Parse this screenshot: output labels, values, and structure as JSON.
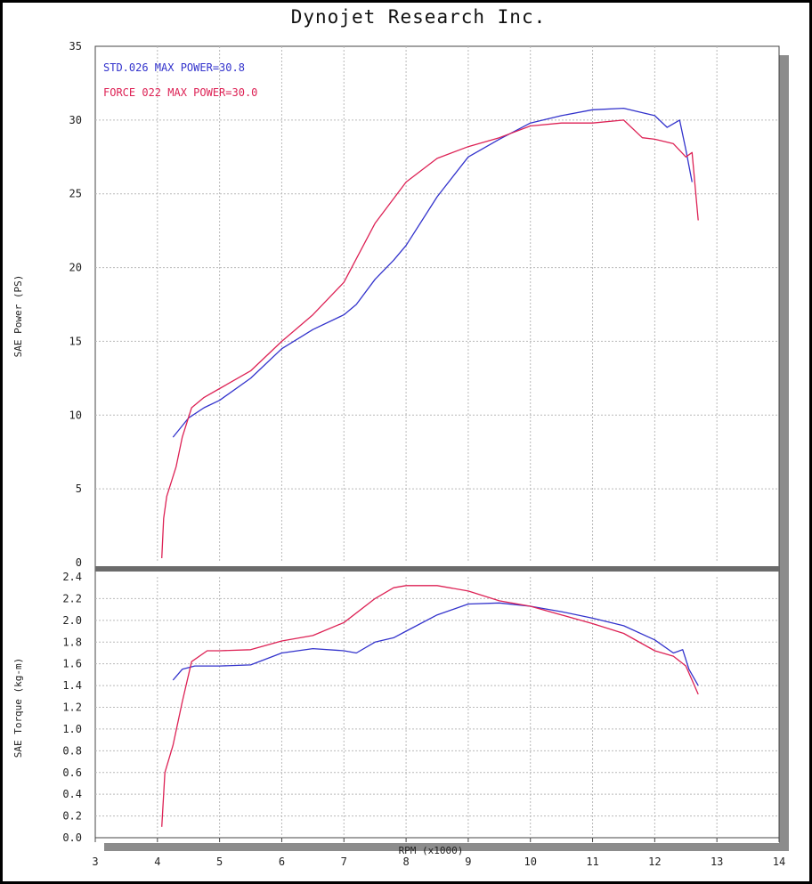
{
  "header": {
    "title": "Dynojet Research Inc."
  },
  "chart_data": [
    {
      "type": "line",
      "ylabel": "SAE Power (PS)",
      "xlim": [
        3,
        14
      ],
      "ylim": [
        0,
        35
      ],
      "yticks": [
        "0",
        "5",
        "10",
        "15",
        "20",
        "25",
        "30",
        "35"
      ],
      "grid": true,
      "legend": {
        "placement": "top-left",
        "entries": [
          "STD.026  MAX POWER=30.8",
          "FORCE 022  MAX POWER=30.0"
        ]
      },
      "series": [
        {
          "name": "STD.026",
          "color": "#3333cc",
          "x": [
            4.25,
            4.5,
            4.75,
            5.0,
            5.5,
            6.0,
            6.5,
            7.0,
            7.2,
            7.5,
            7.8,
            8.0,
            8.5,
            9.0,
            9.5,
            10.0,
            10.5,
            11.0,
            11.5,
            12.0,
            12.2,
            12.4,
            12.5,
            12.6
          ],
          "y": [
            8.5,
            9.8,
            10.5,
            11.0,
            12.5,
            14.5,
            15.8,
            16.8,
            17.5,
            19.2,
            20.5,
            21.5,
            24.8,
            27.5,
            28.7,
            29.8,
            30.3,
            30.7,
            30.8,
            30.3,
            29.5,
            30.0,
            28.0,
            25.8
          ]
        },
        {
          "name": "FORCE 022",
          "color": "#dd2255",
          "x": [
            4.07,
            4.1,
            4.15,
            4.3,
            4.4,
            4.55,
            4.75,
            5.0,
            5.5,
            6.0,
            6.5,
            7.0,
            7.5,
            8.0,
            8.5,
            9.0,
            9.5,
            10.0,
            10.5,
            11.0,
            11.5,
            11.8,
            12.0,
            12.3,
            12.5,
            12.6,
            12.7
          ],
          "y": [
            0.3,
            3.0,
            4.5,
            6.5,
            8.5,
            10.5,
            11.2,
            11.8,
            13.0,
            15.0,
            16.8,
            19.0,
            23.0,
            25.8,
            27.4,
            28.2,
            28.8,
            29.6,
            29.8,
            29.8,
            30.0,
            28.8,
            28.7,
            28.4,
            27.5,
            27.8,
            23.2
          ]
        }
      ]
    },
    {
      "type": "line",
      "xlabel": "RPM (x1000)",
      "ylabel": "SAE Torque (kg-m)",
      "xlim": [
        3,
        14
      ],
      "ylim": [
        0,
        2.4
      ],
      "xticks": [
        "3",
        "4",
        "5",
        "6",
        "7",
        "8",
        "9",
        "10",
        "11",
        "12",
        "13",
        "14"
      ],
      "yticks": [
        "0.0",
        "0.2",
        "0.4",
        "0.6",
        "0.8",
        "1.0",
        "1.2",
        "1.4",
        "1.6",
        "1.8",
        "2.0",
        "2.2",
        "2.4"
      ],
      "grid": true,
      "series": [
        {
          "name": "STD.026",
          "color": "#3333cc",
          "x": [
            4.25,
            4.4,
            4.6,
            5.0,
            5.5,
            6.0,
            6.5,
            7.0,
            7.2,
            7.5,
            7.8,
            8.0,
            8.5,
            9.0,
            9.5,
            10.0,
            10.5,
            11.0,
            11.5,
            12.0,
            12.3,
            12.45,
            12.55,
            12.7
          ],
          "y": [
            1.45,
            1.55,
            1.58,
            1.58,
            1.59,
            1.7,
            1.74,
            1.72,
            1.7,
            1.8,
            1.84,
            1.9,
            2.05,
            2.15,
            2.16,
            2.13,
            2.08,
            2.02,
            1.95,
            1.82,
            1.7,
            1.73,
            1.55,
            1.4
          ]
        },
        {
          "name": "FORCE 022",
          "color": "#dd2255",
          "x": [
            4.07,
            4.12,
            4.25,
            4.4,
            4.55,
            4.8,
            5.0,
            5.5,
            6.0,
            6.5,
            7.0,
            7.5,
            7.8,
            8.0,
            8.5,
            9.0,
            9.5,
            10.0,
            10.5,
            11.0,
            11.5,
            12.0,
            12.3,
            12.5,
            12.6,
            12.7
          ],
          "y": [
            0.1,
            0.6,
            0.85,
            1.25,
            1.62,
            1.72,
            1.72,
            1.73,
            1.81,
            1.86,
            1.98,
            2.2,
            2.3,
            2.32,
            2.32,
            2.27,
            2.18,
            2.13,
            2.05,
            1.97,
            1.88,
            1.72,
            1.67,
            1.58,
            1.45,
            1.32
          ]
        }
      ]
    }
  ]
}
